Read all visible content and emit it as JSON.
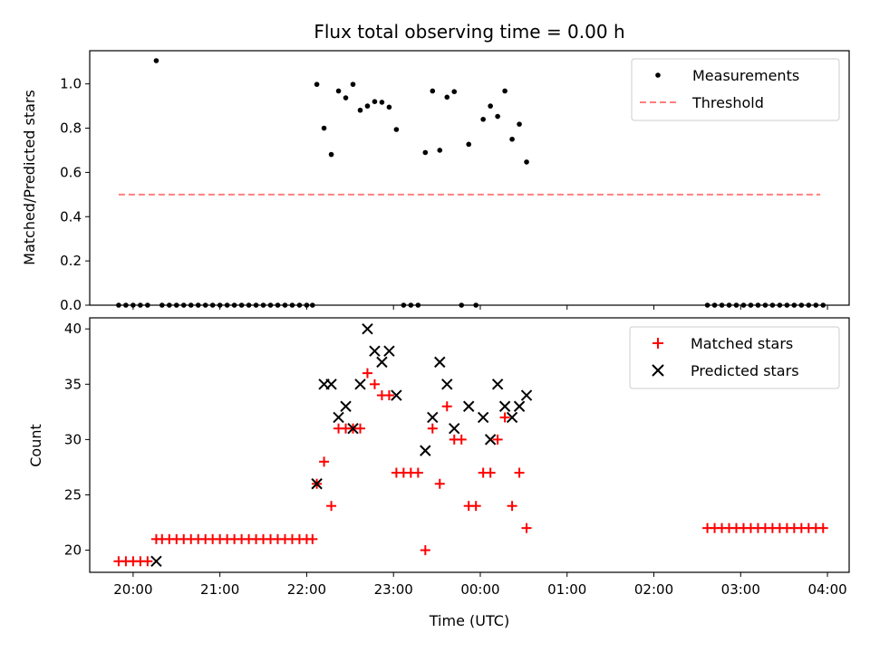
{
  "chart_data": [
    {
      "type": "scatter",
      "title": "Flux total observing time = 0.00 h",
      "ylabel": "Matched/Predicted stars",
      "ylim": [
        0,
        1.15
      ],
      "yticks": [
        0.0,
        0.2,
        0.4,
        0.6,
        0.8,
        1.0
      ],
      "yticklabels": [
        "0.0",
        "0.2",
        "0.4",
        "0.6",
        "0.8",
        "1.0"
      ],
      "legend_position": "top-right",
      "series": [
        {
          "name": "Measurements",
          "marker": "dot",
          "color": "#000000",
          "points": [
            [
              "19:50",
              0
            ],
            [
              "19:55",
              0
            ],
            [
              "20:00",
              0
            ],
            [
              "20:05",
              0
            ],
            [
              "20:10",
              0
            ],
            [
              "20:16",
              1.105
            ],
            [
              "20:20",
              0
            ],
            [
              "20:25",
              0
            ],
            [
              "20:30",
              0
            ],
            [
              "20:35",
              0
            ],
            [
              "20:40",
              0
            ],
            [
              "20:45",
              0
            ],
            [
              "20:50",
              0
            ],
            [
              "20:55",
              0
            ],
            [
              "21:00",
              0
            ],
            [
              "21:05",
              0
            ],
            [
              "21:10",
              0
            ],
            [
              "21:15",
              0
            ],
            [
              "21:20",
              0
            ],
            [
              "21:25",
              0
            ],
            [
              "21:30",
              0
            ],
            [
              "21:35",
              0
            ],
            [
              "21:40",
              0
            ],
            [
              "21:45",
              0
            ],
            [
              "21:50",
              0
            ],
            [
              "21:55",
              0
            ],
            [
              "22:00",
              0
            ],
            [
              "22:04",
              0
            ],
            [
              "22:07",
              0.998
            ],
            [
              "22:12",
              0.8
            ],
            [
              "22:17",
              0.681
            ],
            [
              "22:22",
              0.968
            ],
            [
              "22:27",
              0.937
            ],
            [
              "22:32",
              0.998
            ],
            [
              "22:37",
              0.881
            ],
            [
              "22:42",
              0.9
            ],
            [
              "22:47",
              0.92
            ],
            [
              "22:52",
              0.917
            ],
            [
              "22:57",
              0.895
            ],
            [
              "23:02",
              0.794
            ],
            [
              "23:07",
              0
            ],
            [
              "23:12",
              0
            ],
            [
              "23:17",
              0
            ],
            [
              "23:22",
              0.69
            ],
            [
              "23:27",
              0.968
            ],
            [
              "23:32",
              0.7
            ],
            [
              "23:37",
              0.94
            ],
            [
              "23:42",
              0.965
            ],
            [
              "23:47",
              0
            ],
            [
              "23:52",
              0.727
            ],
            [
              "23:57",
              0
            ],
            [
              "00:02",
              0.84
            ],
            [
              "00:07",
              0.9
            ],
            [
              "00:12",
              0.853
            ],
            [
              "00:17",
              0.968
            ],
            [
              "00:22",
              0.75
            ],
            [
              "00:27",
              0.818
            ],
            [
              "00:32",
              0.647
            ],
            [
              "02:37",
              0
            ],
            [
              "02:42",
              0
            ],
            [
              "02:47",
              0
            ],
            [
              "02:52",
              0
            ],
            [
              "02:57",
              0
            ],
            [
              "03:02",
              0
            ],
            [
              "03:07",
              0
            ],
            [
              "03:12",
              0
            ],
            [
              "03:17",
              0
            ],
            [
              "03:22",
              0
            ],
            [
              "03:27",
              0
            ],
            [
              "03:32",
              0
            ],
            [
              "03:37",
              0
            ],
            [
              "03:42",
              0
            ],
            [
              "03:47",
              0
            ],
            [
              "03:52",
              0
            ],
            [
              "03:57",
              0
            ]
          ]
        },
        {
          "name": "Threshold",
          "marker": "dashed-line",
          "color": "#ff7f7f",
          "points": [
            [
              "19:50",
              0.5
            ],
            [
              "03:55",
              0.5
            ]
          ]
        }
      ]
    },
    {
      "type": "scatter",
      "xlabel": "Time (UTC)",
      "ylabel": "Count",
      "ylim": [
        18,
        41
      ],
      "yticks": [
        20,
        25,
        30,
        35,
        40
      ],
      "yticklabels": [
        "20",
        "25",
        "30",
        "35",
        "40"
      ],
      "xlim": [
        "19:30",
        "04:15"
      ],
      "xticklabels": [
        "20:00",
        "21:00",
        "22:00",
        "23:00",
        "00:00",
        "01:00",
        "02:00",
        "03:00",
        "04:00"
      ],
      "legend_position": "top-right",
      "series": [
        {
          "name": "Matched stars",
          "marker": "plus",
          "color": "#ff0000",
          "points": [
            [
              "19:50",
              19
            ],
            [
              "19:55",
              19
            ],
            [
              "20:00",
              19
            ],
            [
              "20:05",
              19
            ],
            [
              "20:10",
              19
            ],
            [
              "20:16",
              21
            ],
            [
              "20:20",
              21
            ],
            [
              "20:25",
              21
            ],
            [
              "20:30",
              21
            ],
            [
              "20:35",
              21
            ],
            [
              "20:40",
              21
            ],
            [
              "20:45",
              21
            ],
            [
              "20:50",
              21
            ],
            [
              "20:55",
              21
            ],
            [
              "21:00",
              21
            ],
            [
              "21:05",
              21
            ],
            [
              "21:10",
              21
            ],
            [
              "21:15",
              21
            ],
            [
              "21:20",
              21
            ],
            [
              "21:25",
              21
            ],
            [
              "21:30",
              21
            ],
            [
              "21:35",
              21
            ],
            [
              "21:40",
              21
            ],
            [
              "21:45",
              21
            ],
            [
              "21:50",
              21
            ],
            [
              "21:55",
              21
            ],
            [
              "22:00",
              21
            ],
            [
              "22:04",
              21
            ],
            [
              "22:07",
              26
            ],
            [
              "22:12",
              28
            ],
            [
              "22:17",
              24
            ],
            [
              "22:22",
              31
            ],
            [
              "22:27",
              31
            ],
            [
              "22:32",
              31
            ],
            [
              "22:37",
              31
            ],
            [
              "22:42",
              36
            ],
            [
              "22:47",
              35
            ],
            [
              "22:52",
              34
            ],
            [
              "22:57",
              34
            ],
            [
              "23:02",
              27
            ],
            [
              "23:07",
              27
            ],
            [
              "23:12",
              27
            ],
            [
              "23:17",
              27
            ],
            [
              "23:22",
              20
            ],
            [
              "23:27",
              31
            ],
            [
              "23:32",
              26
            ],
            [
              "23:37",
              33
            ],
            [
              "23:42",
              30
            ],
            [
              "23:47",
              30
            ],
            [
              "23:52",
              24
            ],
            [
              "23:57",
              24
            ],
            [
              "00:02",
              27
            ],
            [
              "00:07",
              27
            ],
            [
              "00:12",
              30
            ],
            [
              "00:17",
              32
            ],
            [
              "00:22",
              24
            ],
            [
              "00:27",
              27
            ],
            [
              "00:32",
              22
            ],
            [
              "02:37",
              22
            ],
            [
              "02:42",
              22
            ],
            [
              "02:47",
              22
            ],
            [
              "02:52",
              22
            ],
            [
              "02:57",
              22
            ],
            [
              "03:02",
              22
            ],
            [
              "03:07",
              22
            ],
            [
              "03:12",
              22
            ],
            [
              "03:17",
              22
            ],
            [
              "03:22",
              22
            ],
            [
              "03:27",
              22
            ],
            [
              "03:32",
              22
            ],
            [
              "03:37",
              22
            ],
            [
              "03:42",
              22
            ],
            [
              "03:47",
              22
            ],
            [
              "03:52",
              22
            ],
            [
              "03:57",
              22
            ]
          ]
        },
        {
          "name": "Predicted stars",
          "marker": "x",
          "color": "#000000",
          "points": [
            [
              "20:16",
              19
            ],
            [
              "22:07",
              26
            ],
            [
              "22:12",
              35
            ],
            [
              "22:17",
              35
            ],
            [
              "22:22",
              32
            ],
            [
              "22:27",
              33
            ],
            [
              "22:32",
              31
            ],
            [
              "22:37",
              35
            ],
            [
              "22:42",
              40
            ],
            [
              "22:47",
              38
            ],
            [
              "22:52",
              37
            ],
            [
              "22:57",
              38
            ],
            [
              "23:02",
              34
            ],
            [
              "23:22",
              29
            ],
            [
              "23:27",
              32
            ],
            [
              "23:32",
              37
            ],
            [
              "23:37",
              35
            ],
            [
              "23:42",
              31
            ],
            [
              "23:52",
              33
            ],
            [
              "00:02",
              32
            ],
            [
              "00:07",
              30
            ],
            [
              "00:12",
              35
            ],
            [
              "00:17",
              33
            ],
            [
              "00:22",
              32
            ],
            [
              "00:27",
              33
            ],
            [
              "00:32",
              34
            ]
          ]
        }
      ]
    }
  ]
}
